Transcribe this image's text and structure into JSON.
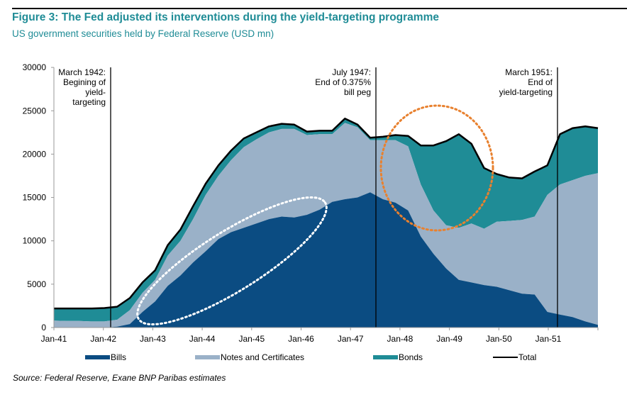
{
  "header": {
    "title": "Figure 3: The Fed adjusted its interventions during the yield-targeting programme",
    "subtitle": "US government securities held by Federal Reserve (USD mn)"
  },
  "source": "Source: Federal Reserve, Exane BNP Paribas estimates",
  "colors": {
    "bills": "#0b4c82",
    "notes": "#9ab1c8",
    "bonds": "#1f8c96",
    "total": "#000000",
    "title": "#1f8c96",
    "orange_circle": "#e8812f",
    "white_ellipse": "#ffffff"
  },
  "chart_data": {
    "type": "area",
    "stacked": true,
    "title": "US government securities held by Federal Reserve (USD mn)",
    "xlabel": "",
    "ylabel": "",
    "ylim": [
      0,
      30000
    ],
    "xlim": [
      "Jan-41",
      "Dec-51"
    ],
    "grid": false,
    "legend_position": "bottom",
    "x_tick_labels": [
      "Jan-41",
      "Jan-42",
      "Jan-43",
      "Jan-44",
      "Jan-45",
      "Jan-46",
      "Jan-47",
      "Jan-48",
      "Jan-49",
      "Jan-50",
      "Jan-51"
    ],
    "y_tick_labels": [
      "0",
      "5000",
      "10000",
      "15000",
      "20000",
      "25000",
      "30000"
    ],
    "y_ticks": [
      0,
      5000,
      10000,
      15000,
      20000,
      25000,
      30000
    ],
    "x": [
      "1941Q1",
      "1941Q2",
      "1941Q3",
      "1941Q4",
      "1942Q1",
      "1942Q2",
      "1942Q3",
      "1942Q4",
      "1943Q1",
      "1943Q2",
      "1943Q3",
      "1943Q4",
      "1944Q1",
      "1944Q2",
      "1944Q3",
      "1944Q4",
      "1945Q1",
      "1945Q2",
      "1945Q3",
      "1945Q4",
      "1946Q1",
      "1946Q2",
      "1946Q3",
      "1946Q4",
      "1947Q1",
      "1947Q2",
      "1947Q3",
      "1947Q4",
      "1948Q1",
      "1948Q2",
      "1948Q3",
      "1948Q4",
      "1949Q1",
      "1949Q2",
      "1949Q3",
      "1949Q4",
      "1950Q1",
      "1950Q2",
      "1950Q3",
      "1950Q4",
      "1951Q1",
      "1951Q2",
      "1951Q3",
      "1951Q4"
    ],
    "series": [
      {
        "name": "Bills",
        "values": [
          0,
          0,
          0,
          0,
          0,
          100,
          400,
          1800,
          3000,
          4800,
          6000,
          7500,
          8800,
          10200,
          11000,
          11500,
          12000,
          12500,
          12800,
          12700,
          13000,
          13600,
          14500,
          14800,
          15000,
          15600,
          14800,
          14400,
          13500,
          10500,
          8500,
          6800,
          5500,
          5200,
          4900,
          4700,
          4300,
          3900,
          3800,
          1800,
          1500,
          1200,
          700,
          300
        ]
      },
      {
        "name": "Notes and Certificates",
        "values": [
          800,
          750,
          750,
          700,
          700,
          800,
          1600,
          2200,
          2500,
          3500,
          4000,
          5000,
          6500,
          7300,
          8300,
          9300,
          9700,
          10000,
          10100,
          10200,
          9200,
          8700,
          7800,
          8800,
          8100,
          6000,
          6800,
          7200,
          7400,
          6000,
          5000,
          5000,
          6000,
          6800,
          6500,
          7500,
          8000,
          8500,
          9000,
          13500,
          15000,
          15800,
          16800,
          17500
        ]
      },
      {
        "name": "Bonds",
        "values": [
          1400,
          1450,
          1450,
          1500,
          1550,
          1500,
          1400,
          1200,
          1100,
          1200,
          1300,
          1500,
          1300,
          1200,
          1100,
          1000,
          800,
          700,
          600,
          500,
          400,
          400,
          400,
          500,
          300,
          300,
          400,
          600,
          1200,
          4500,
          7500,
          9700,
          10800,
          9200,
          7000,
          5500,
          5000,
          4800,
          5200,
          3400,
          5800,
          6000,
          5700,
          5200
        ]
      },
      {
        "name": "Total",
        "values": [
          2200,
          2200,
          2200,
          2200,
          2250,
          2400,
          3400,
          5200,
          6600,
          9500,
          11300,
          14000,
          16600,
          18700,
          20400,
          21800,
          22500,
          23200,
          23500,
          23400,
          22600,
          22700,
          22700,
          24100,
          23400,
          21900,
          22000,
          22200,
          22100,
          21000,
          21000,
          21500,
          22300,
          21200,
          18400,
          17700,
          17300,
          17200,
          18000,
          18700,
          22300,
          23000,
          23200,
          23000
        ]
      }
    ],
    "annotations": [
      {
        "x": "Mar-42",
        "label": [
          "March 1942:",
          "Begining of",
          "yield-",
          "targeting"
        ]
      },
      {
        "x": "Jul-47",
        "label": [
          "July 1947:",
          "End of 0.375%",
          "bill peg"
        ]
      },
      {
        "x": "Mar-51",
        "label": [
          "March 1951:",
          "End of",
          "yield-targeting"
        ]
      }
    ],
    "highlights": [
      {
        "shape": "ellipse",
        "style": "dotted",
        "color": "white",
        "region": "Bills build-up 1943-1946"
      },
      {
        "shape": "circle",
        "style": "dotted",
        "color": "orange",
        "region": "Bonds surge 1948-1949"
      }
    ]
  },
  "legend": {
    "bills": "Bills",
    "notes": "Notes and Certificates",
    "bonds": "Bonds",
    "total": "Total"
  }
}
